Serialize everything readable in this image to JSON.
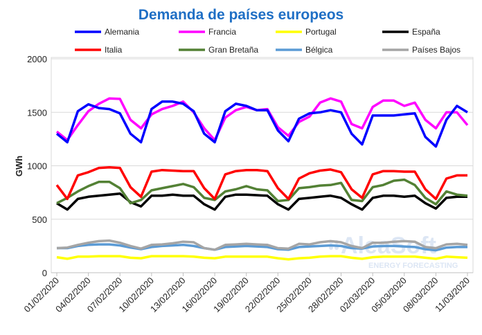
{
  "chart_data": {
    "type": "line",
    "title": "Demanda de países europeos",
    "xlabel": "",
    "ylabel": "GWh",
    "ylim": [
      0,
      2000
    ],
    "yticks": [
      "0",
      "500",
      "1000",
      "1500",
      "2000"
    ],
    "grid": "horizontal",
    "legend": "top",
    "watermark": "AleaSoft ENERGY FORECASTING",
    "x": [
      "01/02/2020",
      "02/02/2020",
      "03/02/2020",
      "04/02/2020",
      "05/02/2020",
      "06/02/2020",
      "07/02/2020",
      "08/02/2020",
      "09/02/2020",
      "10/02/2020",
      "11/02/2020",
      "12/02/2020",
      "13/02/2020",
      "14/02/2020",
      "15/02/2020",
      "16/02/2020",
      "17/02/2020",
      "18/02/2020",
      "19/02/2020",
      "20/02/2020",
      "21/02/2020",
      "22/02/2020",
      "23/02/2020",
      "24/02/2020",
      "25/02/2020",
      "26/02/2020",
      "27/02/2020",
      "28/02/2020",
      "29/02/2020",
      "01/03/2020",
      "02/03/2020",
      "03/03/2020",
      "04/03/2020",
      "05/03/2020",
      "06/03/2020",
      "07/03/2020",
      "08/03/2020",
      "09/03/2020",
      "10/03/2020",
      "11/03/2020"
    ],
    "xticklabels": [
      "01/02/2020",
      "04/02/2020",
      "07/02/2020",
      "10/02/2020",
      "13/02/2020",
      "16/02/2020",
      "19/02/2020",
      "22/02/2020",
      "25/02/2020",
      "28/02/2020",
      "02/03/2020",
      "05/03/2020",
      "08/03/2020",
      "11/03/2020"
    ],
    "series": [
      {
        "name": "Alemania",
        "color": "#0000ff",
        "values": [
          1300,
          1220,
          1510,
          1575,
          1540,
          1530,
          1490,
          1300,
          1220,
          1530,
          1600,
          1600,
          1580,
          1510,
          1300,
          1220,
          1510,
          1580,
          1560,
          1520,
          1520,
          1330,
          1230,
          1440,
          1490,
          1500,
          1520,
          1500,
          1300,
          1200,
          1470,
          1470,
          1470,
          1480,
          1490,
          1270,
          1180,
          1430,
          1560,
          1500
        ]
      },
      {
        "name": "Francia",
        "color": "#ff00ff",
        "values": [
          1320,
          1240,
          1380,
          1510,
          1580,
          1630,
          1625,
          1430,
          1350,
          1480,
          1530,
          1560,
          1600,
          1500,
          1350,
          1240,
          1450,
          1520,
          1550,
          1520,
          1530,
          1360,
          1280,
          1410,
          1460,
          1590,
          1630,
          1600,
          1390,
          1350,
          1550,
          1610,
          1610,
          1560,
          1590,
          1430,
          1350,
          1500,
          1500,
          1380
        ]
      },
      {
        "name": "Portugal",
        "color": "#ffff00",
        "values": [
          145,
          130,
          150,
          150,
          155,
          155,
          155,
          140,
          135,
          155,
          155,
          155,
          155,
          150,
          140,
          135,
          150,
          150,
          150,
          150,
          150,
          135,
          125,
          135,
          140,
          150,
          155,
          155,
          140,
          130,
          145,
          150,
          150,
          150,
          150,
          140,
          130,
          150,
          145,
          140
        ]
      },
      {
        "name": "España",
        "color": "#000000",
        "values": [
          650,
          590,
          690,
          710,
          720,
          730,
          740,
          660,
          620,
          720,
          720,
          730,
          720,
          720,
          640,
          590,
          710,
          730,
          730,
          725,
          720,
          640,
          590,
          690,
          700,
          710,
          720,
          700,
          640,
          590,
          700,
          720,
          720,
          710,
          720,
          650,
          600,
          700,
          710,
          710
        ]
      },
      {
        "name": "Italia",
        "color": "#ff0000",
        "values": [
          820,
          690,
          910,
          940,
          980,
          985,
          980,
          800,
          710,
          945,
          960,
          955,
          950,
          950,
          790,
          690,
          920,
          950,
          960,
          960,
          950,
          790,
          690,
          880,
          930,
          955,
          965,
          940,
          780,
          700,
          920,
          950,
          950,
          945,
          945,
          780,
          690,
          880,
          910,
          910
        ]
      },
      {
        "name": "Gran Bretaña",
        "color": "#538135",
        "values": [
          650,
          700,
          760,
          810,
          850,
          850,
          790,
          650,
          680,
          770,
          790,
          810,
          830,
          800,
          700,
          680,
          760,
          780,
          810,
          780,
          770,
          670,
          680,
          790,
          800,
          815,
          820,
          840,
          680,
          670,
          800,
          820,
          860,
          870,
          820,
          700,
          640,
          760,
          730,
          720
        ]
      },
      {
        "name": "Bélgica",
        "color": "#5b9bd5",
        "values": [
          230,
          230,
          250,
          260,
          265,
          265,
          255,
          235,
          220,
          240,
          250,
          255,
          260,
          250,
          230,
          215,
          240,
          245,
          250,
          245,
          240,
          220,
          215,
          240,
          245,
          250,
          255,
          250,
          230,
          225,
          245,
          250,
          250,
          245,
          240,
          220,
          210,
          235,
          240,
          240
        ]
      },
      {
        "name": "Países Bajos",
        "color": "#a5a5a5",
        "values": [
          230,
          235,
          260,
          280,
          295,
          300,
          280,
          250,
          225,
          260,
          265,
          275,
          290,
          285,
          230,
          215,
          260,
          265,
          270,
          265,
          260,
          230,
          225,
          270,
          265,
          285,
          295,
          285,
          250,
          230,
          280,
          280,
          290,
          295,
          290,
          240,
          230,
          265,
          270,
          260
        ]
      }
    ]
  }
}
